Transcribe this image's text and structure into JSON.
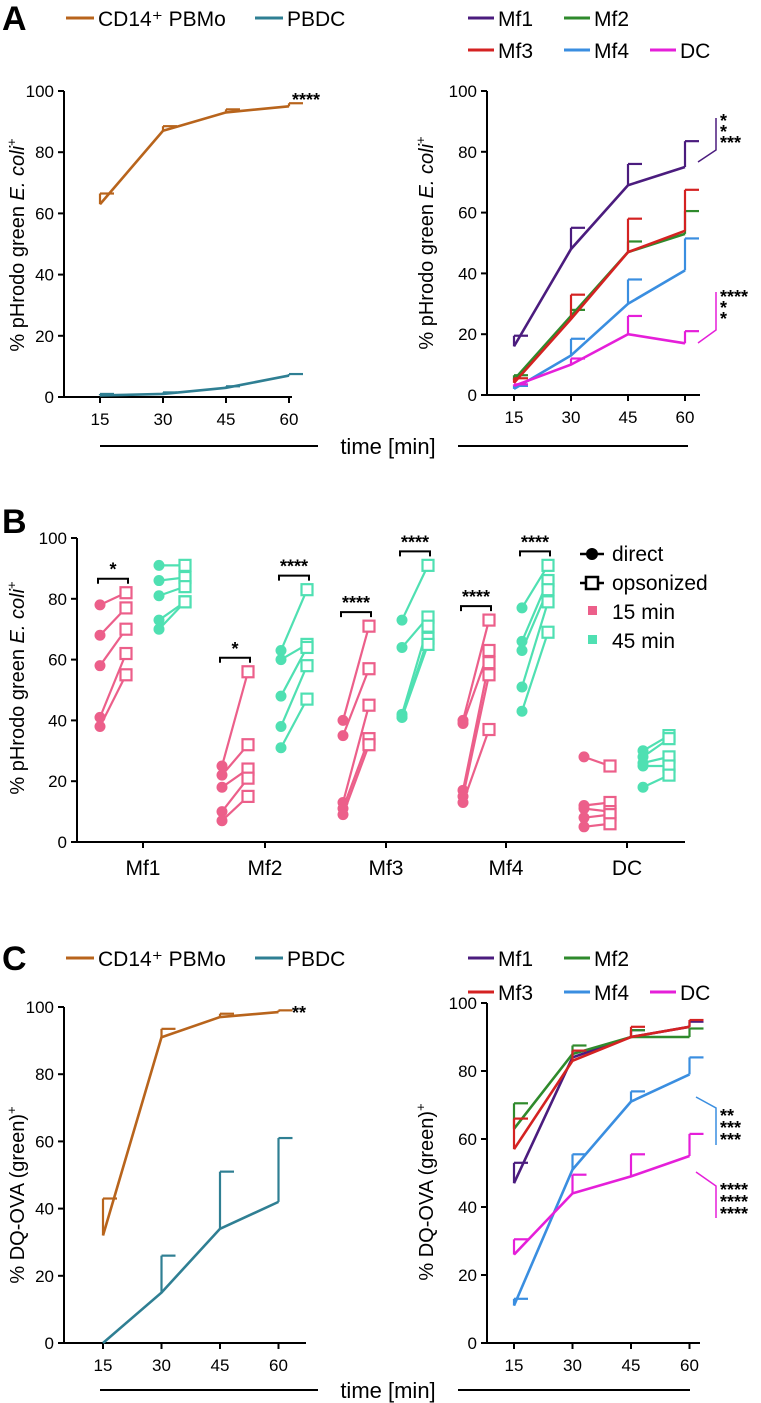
{
  "colors": {
    "pbmo": "#b8641c",
    "pbdc": "#2f7f93",
    "Mf1": "#4b1c7e",
    "Mf2": "#2f8a2c",
    "Mf3": "#d42222",
    "Mf4": "#3a8ee0",
    "DC": "#e51fd9",
    "salmon": "#ec5f8a",
    "teal": "#4fe0b2"
  },
  "labels": {
    "A": "A",
    "B": "B",
    "C": "C",
    "pbmo": "CD14⁺ PBMo",
    "pbdc": "PBDC",
    "Mf1": "Mf1",
    "Mf2": "Mf2",
    "Mf3": "Mf3",
    "Mf4": "Mf4",
    "DC": "DC",
    "time": "time [min]",
    "ylabel_prefix": "% pHrodo green ",
    "ylabel_italic": "E. coli",
    "ylabel_sup": "+",
    "ylabel_dq": "% DQ-OVA (green)",
    "ylabel_dq_sup": "+",
    "direct": "direct",
    "opsonized": "opsonized",
    "min15": "15 min",
    "min45": "45 min"
  },
  "chart_data": [
    {
      "id": "A-left",
      "type": "line",
      "x": [
        15,
        30,
        45,
        60
      ],
      "xlabel": "time [min]",
      "ylabel": "% pHrodo green E. coli+",
      "ylim": [
        0,
        100
      ],
      "yticks": [
        0,
        20,
        40,
        60,
        80,
        100
      ],
      "series": [
        {
          "name": "CD14+ PBMo",
          "color": "#b8641c",
          "values": [
            63,
            87,
            93,
            95
          ],
          "errors": [
            3.5,
            1.5,
            1,
            1
          ],
          "sig": "****",
          "sigColor": "#2f7f93"
        },
        {
          "name": "PBDC",
          "color": "#2f7f93",
          "values": [
            0.5,
            1,
            3,
            7
          ],
          "errors": [
            0.5,
            0.5,
            0.5,
            0.5
          ]
        }
      ]
    },
    {
      "id": "A-right",
      "type": "line",
      "x": [
        15,
        30,
        45,
        60
      ],
      "xlabel": "time [min]",
      "ylabel": "% pHrodo green E. coli+",
      "ylim": [
        0,
        100
      ],
      "yticks": [
        0,
        20,
        40,
        60,
        80,
        100
      ],
      "series": [
        {
          "name": "Mf1",
          "color": "#4b1c7e",
          "values": [
            16,
            48,
            69,
            75
          ],
          "errors": [
            3.5,
            7,
            7,
            8.5
          ]
        },
        {
          "name": "Mf2",
          "color": "#2f8a2c",
          "values": [
            5,
            26,
            47,
            53
          ],
          "errors": [
            1.5,
            2,
            3.5,
            7.5
          ]
        },
        {
          "name": "Mf3",
          "color": "#d42222",
          "values": [
            4,
            25,
            47,
            54
          ],
          "errors": [
            1.5,
            8,
            11,
            13.5
          ]
        },
        {
          "name": "Mf4",
          "color": "#3a8ee0",
          "values": [
            2,
            13,
            30,
            41
          ],
          "errors": [
            1,
            5.5,
            8,
            10.5
          ]
        },
        {
          "name": "DC",
          "color": "#e51fd9",
          "values": [
            3,
            10,
            20,
            17
          ],
          "errors": [
            0.5,
            2,
            6,
            4
          ]
        }
      ],
      "annotations": [
        {
          "text": "*",
          "color": "#2f8a2c"
        },
        {
          "text": "*",
          "color": "#d42222"
        },
        {
          "text": "***",
          "color": "#3a8ee0"
        },
        {
          "text": "****",
          "color": "#4b1c7e"
        },
        {
          "text": "*",
          "color": "#2f8a2c"
        },
        {
          "text": "*",
          "color": "#d42222"
        }
      ]
    },
    {
      "id": "B",
      "type": "scatter",
      "categories": [
        "Mf1",
        "Mf2",
        "Mf3",
        "Mf4",
        "DC"
      ],
      "ylabel": "% pHrodo green E. coli+",
      "ylim": [
        0,
        100
      ],
      "yticks": [
        0,
        20,
        40,
        60,
        80,
        100
      ],
      "legend": [
        "direct",
        "opsonized",
        "15 min",
        "45 min"
      ],
      "groups": [
        {
          "category": "Mf1",
          "time": "15 min",
          "direct": [
            78,
            68,
            58,
            41,
            38
          ],
          "opsonized": [
            82,
            77,
            70,
            62,
            55
          ]
        },
        {
          "category": "Mf1",
          "time": "45 min",
          "direct": [
            91,
            86,
            81,
            73,
            70
          ],
          "opsonized": [
            91,
            87,
            84,
            79,
            79
          ]
        },
        {
          "category": "Mf2",
          "time": "15 min",
          "direct": [
            25,
            22,
            18,
            10,
            7
          ],
          "opsonized": [
            56,
            32,
            24,
            21,
            15
          ]
        },
        {
          "category": "Mf2",
          "time": "45 min",
          "direct": [
            63,
            60,
            48,
            38,
            31
          ],
          "opsonized": [
            83,
            65,
            64,
            58,
            47
          ]
        },
        {
          "category": "Mf3",
          "time": "15 min",
          "direct": [
            40,
            35,
            13,
            11,
            9
          ],
          "opsonized": [
            71,
            57,
            45,
            34,
            32
          ]
        },
        {
          "category": "Mf3",
          "time": "45 min",
          "direct": [
            73,
            64,
            42,
            41,
            41
          ],
          "opsonized": [
            91,
            74,
            71,
            67,
            65
          ]
        },
        {
          "category": "Mf4",
          "time": "15 min",
          "direct": [
            40,
            39,
            17,
            15,
            13
          ],
          "opsonized": [
            73,
            63,
            59,
            55,
            37
          ]
        },
        {
          "category": "Mf4",
          "time": "45 min",
          "direct": [
            77,
            66,
            63,
            51,
            43
          ],
          "opsonized": [
            91,
            86,
            83,
            79,
            69
          ]
        },
        {
          "category": "DC",
          "time": "15 min",
          "direct": [
            28,
            12,
            11,
            8,
            5
          ],
          "opsonized": [
            25,
            13,
            10,
            9,
            6
          ]
        },
        {
          "category": "DC",
          "time": "45 min",
          "direct": [
            30,
            28,
            26,
            25,
            18
          ],
          "opsonized": [
            35,
            34,
            28,
            25,
            22
          ]
        }
      ],
      "brackets": [
        {
          "category": "Mf1",
          "time": "15 min",
          "text": "*"
        },
        {
          "category": "Mf2",
          "time": "15 min",
          "text": "*"
        },
        {
          "category": "Mf2",
          "time": "45 min",
          "text": "****"
        },
        {
          "category": "Mf3",
          "time": "15 min",
          "text": "****"
        },
        {
          "category": "Mf3",
          "time": "45 min",
          "text": "****"
        },
        {
          "category": "Mf4",
          "time": "15 min",
          "text": "****"
        },
        {
          "category": "Mf4",
          "time": "45 min",
          "text": "****"
        }
      ]
    },
    {
      "id": "C-left",
      "type": "line",
      "x": [
        15,
        30,
        45,
        60
      ],
      "xlabel": "time [min]",
      "ylabel": "% DQ-OVA (green)+",
      "ylim": [
        0,
        100
      ],
      "yticks": [
        0,
        20,
        40,
        60,
        80,
        100
      ],
      "series": [
        {
          "name": "CD14+ PBMo",
          "color": "#b8641c",
          "values": [
            32,
            91,
            97,
            98.5
          ],
          "errors": [
            11,
            2.5,
            1,
            0.5
          ]
        },
        {
          "name": "PBDC",
          "color": "#2f7f93",
          "values": [
            0,
            15,
            34,
            42
          ],
          "errors": [
            0,
            11,
            17,
            19
          ]
        }
      ],
      "annotations": [
        {
          "text": "**",
          "color": "#2f7f93"
        }
      ]
    },
    {
      "id": "C-right",
      "type": "line",
      "x": [
        15,
        30,
        45,
        60
      ],
      "xlabel": "time [min]",
      "ylabel": "% DQ-OVA (green)+",
      "ylim": [
        0,
        100
      ],
      "yticks": [
        0,
        20,
        40,
        60,
        80,
        100
      ],
      "series": [
        {
          "name": "Mf1",
          "color": "#4b1c7e",
          "values": [
            47,
            84,
            90,
            93
          ],
          "errors": [
            6,
            2,
            2,
            1.5
          ]
        },
        {
          "name": "Mf2",
          "color": "#2f8a2c",
          "values": [
            63,
            85,
            90,
            90
          ],
          "errors": [
            7.5,
            2.5,
            2,
            2.5
          ]
        },
        {
          "name": "Mf3",
          "color": "#d42222",
          "values": [
            57,
            83,
            90,
            93
          ],
          "errors": [
            9,
            3,
            3,
            2
          ]
        },
        {
          "name": "Mf4",
          "color": "#3a8ee0",
          "values": [
            11,
            51,
            71,
            79
          ],
          "errors": [
            2,
            4.5,
            3,
            5
          ]
        },
        {
          "name": "DC",
          "color": "#e51fd9",
          "values": [
            26,
            44,
            49,
            55
          ],
          "errors": [
            4.5,
            5.5,
            6.5,
            6.5
          ]
        }
      ],
      "annotations": [
        {
          "text": "**",
          "color": "#4b1c7e"
        },
        {
          "text": "***",
          "color": "#2f8a2c"
        },
        {
          "text": "***",
          "color": "#d42222"
        },
        {
          "text": "****",
          "color": "#4b1c7e"
        },
        {
          "text": "****",
          "color": "#2f8a2c"
        },
        {
          "text": "****",
          "color": "#d42222"
        }
      ]
    }
  ]
}
